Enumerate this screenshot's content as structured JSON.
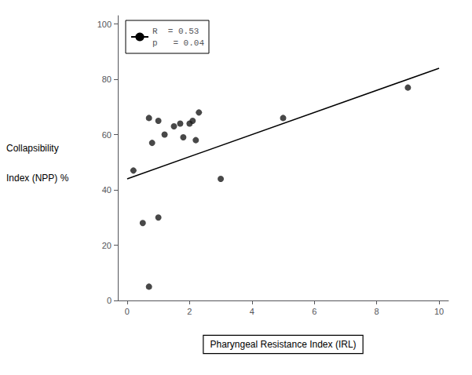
{
  "chart_data": {
    "type": "scatter",
    "xlabel": "Pharyngeal Resistance Index (IRL)",
    "ylabel": "Collapsibility\nIndex (NPP) %",
    "series": [
      {
        "type": "scatter",
        "color": "#1a1a1a",
        "x": [
          0.2,
          0.5,
          0.7,
          0.8,
          1.0,
          1.0,
          1.2,
          1.5,
          1.7,
          1.8,
          2.0,
          2.1,
          2.2,
          2.3,
          3.0,
          0.7,
          5.0,
          9.0
        ],
        "values": [
          47,
          28,
          66,
          57,
          65,
          30,
          60,
          63,
          64,
          59,
          64,
          65,
          58,
          68,
          44,
          5,
          66,
          77
        ]
      },
      {
        "type": "line",
        "name": "R  = 0.53\np   = 0.04",
        "color": "#000000",
        "x": [
          0,
          10
        ],
        "values": [
          44,
          84
        ]
      }
    ],
    "xlim": [
      -0.3,
      10.3
    ],
    "ylim": [
      0,
      103
    ],
    "xticks": [
      0,
      2,
      4,
      6,
      8,
      10
    ],
    "yticks": [
      0,
      20,
      40,
      60,
      80,
      100
    ],
    "grid": false,
    "legend": "upper left"
  }
}
